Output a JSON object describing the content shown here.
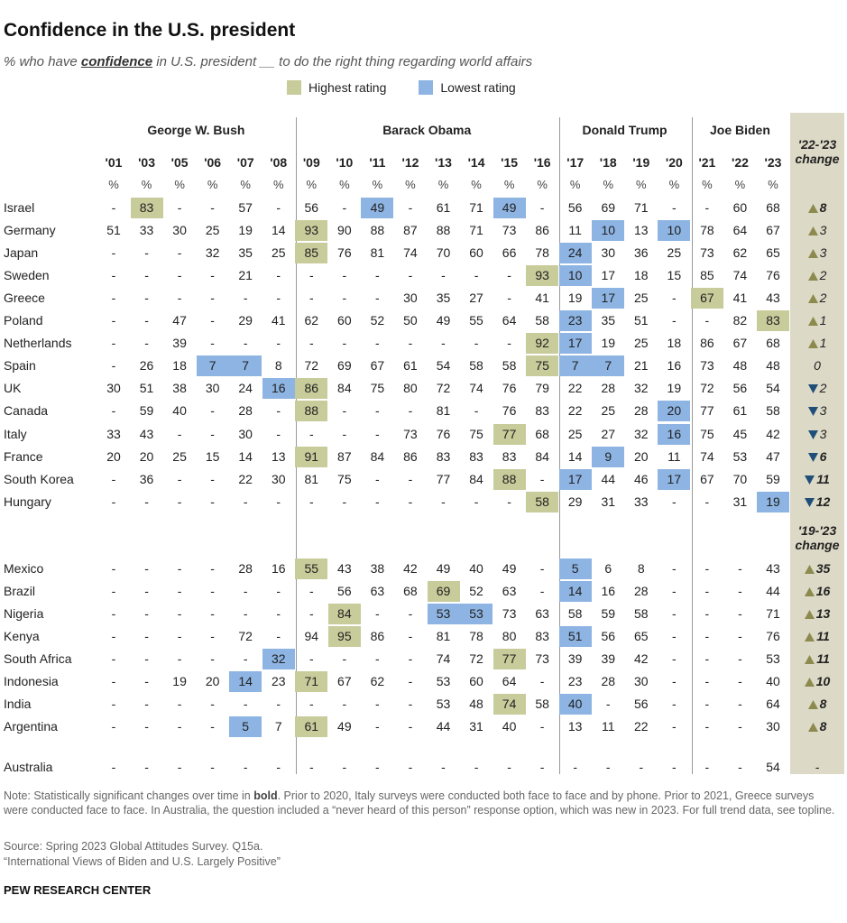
{
  "header": {
    "title": "Confidence in the U.S. president",
    "subtitle": [
      "% who have ",
      "confidence",
      " in U.S. president __ to do the right thing regarding world affairs"
    ]
  },
  "legend": [
    {
      "label": "Highest rating",
      "color": "#c8cb9a"
    },
    {
      "label": "Lowest rating",
      "color": "#8db4e2"
    }
  ],
  "table": {
    "groups": [
      {
        "name": "George W. Bush",
        "years": [
          "'01",
          "'03",
          "'05",
          "'06",
          "'07",
          "'08"
        ]
      },
      {
        "name": "Barack Obama",
        "years": [
          "'09",
          "'10",
          "'11",
          "'12",
          "'13",
          "'14",
          "'15",
          "'16"
        ]
      },
      {
        "name": "Donald Trump",
        "years": [
          "'17",
          "'18",
          "'19",
          "'20"
        ]
      },
      {
        "name": "Joe Biden",
        "years": [
          "'21",
          "'22",
          "'23"
        ]
      }
    ],
    "unit": "%",
    "sections": [
      {
        "change_label": "'22-'23 change",
        "rows": [
          {
            "country": "Israel",
            "cells": [
              "-",
              83,
              "-",
              "-",
              57,
              "-",
              56,
              "-",
              49,
              "-",
              61,
              71,
              49,
              "-",
              56,
              69,
              71,
              "-",
              "-",
              60,
              68
            ],
            "high": [
              "'03"
            ],
            "low": [
              "'11",
              "'15"
            ],
            "change": {
              "direction": "up",
              "value": "8",
              "bold": true
            }
          },
          {
            "country": "Germany",
            "cells": [
              51,
              33,
              30,
              25,
              19,
              14,
              93,
              90,
              88,
              87,
              88,
              71,
              73,
              86,
              11,
              10,
              13,
              10,
              78,
              64,
              67
            ],
            "high": [
              "'09"
            ],
            "low": [
              "'18",
              "'20"
            ],
            "change": {
              "direction": "up",
              "value": "3",
              "bold": false
            }
          },
          {
            "country": "Japan",
            "cells": [
              "-",
              "-",
              "-",
              32,
              35,
              25,
              85,
              76,
              81,
              74,
              70,
              60,
              66,
              78,
              24,
              30,
              36,
              25,
              73,
              62,
              65
            ],
            "high": [
              "'09"
            ],
            "low": [
              "'17"
            ],
            "change": {
              "direction": "up",
              "value": "3",
              "bold": false
            }
          },
          {
            "country": "Sweden",
            "cells": [
              "-",
              "-",
              "-",
              "-",
              21,
              "-",
              "-",
              "-",
              "-",
              "-",
              "-",
              "-",
              "-",
              93,
              10,
              17,
              18,
              15,
              85,
              74,
              76
            ],
            "high": [
              "'16"
            ],
            "low": [
              "'17"
            ],
            "change": {
              "direction": "up",
              "value": "2",
              "bold": false
            }
          },
          {
            "country": "Greece",
            "cells": [
              "-",
              "-",
              "-",
              "-",
              "-",
              "-",
              "-",
              "-",
              "-",
              30,
              35,
              27,
              "-",
              41,
              19,
              17,
              25,
              "-",
              67,
              41,
              43
            ],
            "high": [
              "'21"
            ],
            "low": [
              "'18"
            ],
            "change": {
              "direction": "up",
              "value": "2",
              "bold": false
            }
          },
          {
            "country": "Poland",
            "cells": [
              "-",
              "-",
              47,
              "-",
              29,
              41,
              62,
              60,
              52,
              50,
              49,
              55,
              64,
              58,
              23,
              35,
              51,
              "-",
              "-",
              82,
              83
            ],
            "high": [
              "'23"
            ],
            "low": [
              "'17"
            ],
            "change": {
              "direction": "up",
              "value": "1",
              "bold": false
            }
          },
          {
            "country": "Netherlands",
            "cells": [
              "-",
              "-",
              39,
              "-",
              "-",
              "-",
              "-",
              "-",
              "-",
              "-",
              "-",
              "-",
              "-",
              92,
              17,
              19,
              25,
              18,
              86,
              67,
              68
            ],
            "high": [
              "'16"
            ],
            "low": [
              "'17"
            ],
            "change": {
              "direction": "up",
              "value": "1",
              "bold": false
            }
          },
          {
            "country": "Spain",
            "cells": [
              "-",
              26,
              18,
              7,
              7,
              8,
              72,
              69,
              67,
              61,
              54,
              58,
              58,
              75,
              7,
              7,
              21,
              16,
              73,
              48,
              48
            ],
            "high": [
              "'16"
            ],
            "low": [
              "'06",
              "'07",
              "'17",
              "'18"
            ],
            "change": {
              "direction": null,
              "value": "0",
              "bold": false
            }
          },
          {
            "country": "UK",
            "cells": [
              30,
              51,
              38,
              30,
              24,
              16,
              86,
              84,
              75,
              80,
              72,
              74,
              76,
              79,
              22,
              28,
              32,
              19,
              72,
              56,
              54
            ],
            "high": [
              "'09"
            ],
            "low": [
              "'08"
            ],
            "change": {
              "direction": "down",
              "value": "2",
              "bold": false
            }
          },
          {
            "country": "Canada",
            "cells": [
              "-",
              59,
              40,
              "-",
              28,
              "-",
              88,
              "-",
              "-",
              "-",
              81,
              "-",
              76,
              83,
              22,
              25,
              28,
              20,
              77,
              61,
              58
            ],
            "high": [
              "'09"
            ],
            "low": [
              "'20"
            ],
            "change": {
              "direction": "down",
              "value": "3",
              "bold": false
            }
          },
          {
            "country": "Italy",
            "cells": [
              33,
              43,
              "-",
              "-",
              30,
              "-",
              "-",
              "-",
              "-",
              73,
              76,
              75,
              77,
              68,
              25,
              27,
              32,
              16,
              75,
              45,
              42
            ],
            "high": [
              "'15"
            ],
            "low": [
              "'20"
            ],
            "change": {
              "direction": "down",
              "value": "3",
              "bold": false
            }
          },
          {
            "country": "France",
            "cells": [
              20,
              20,
              25,
              15,
              14,
              13,
              91,
              87,
              84,
              86,
              83,
              83,
              83,
              84,
              14,
              9,
              20,
              11,
              74,
              53,
              47
            ],
            "high": [
              "'09"
            ],
            "low": [
              "'18"
            ],
            "change": {
              "direction": "down",
              "value": "6",
              "bold": true
            }
          },
          {
            "country": "South Korea",
            "cells": [
              "-",
              36,
              "-",
              "-",
              22,
              30,
              81,
              75,
              "-",
              "-",
              77,
              84,
              88,
              "-",
              17,
              44,
              46,
              17,
              67,
              70,
              59
            ],
            "high": [
              "'15"
            ],
            "low": [
              "'17",
              "'20"
            ],
            "change": {
              "direction": "down",
              "value": "11",
              "bold": true
            }
          },
          {
            "country": "Hungary",
            "cells": [
              "-",
              "-",
              "-",
              "-",
              "-",
              "-",
              "-",
              "-",
              "-",
              "-",
              "-",
              "-",
              "-",
              58,
              29,
              31,
              33,
              "-",
              "-",
              31,
              19
            ],
            "high": [
              "'16"
            ],
            "low": [
              "'23"
            ],
            "change": {
              "direction": "down",
              "value": "12",
              "bold": true
            }
          }
        ]
      },
      {
        "change_label": "'19-'23 change",
        "rows": [
          {
            "country": "Mexico",
            "cells": [
              "-",
              "-",
              "-",
              "-",
              28,
              16,
              55,
              43,
              38,
              42,
              49,
              40,
              49,
              "-",
              5,
              6,
              8,
              "-",
              "-",
              "-",
              43
            ],
            "high": [
              "'09"
            ],
            "low": [
              "'17"
            ],
            "change": {
              "direction": "up",
              "value": "35",
              "bold": true
            }
          },
          {
            "country": "Brazil",
            "cells": [
              "-",
              "-",
              "-",
              "-",
              "-",
              "-",
              "-",
              56,
              63,
              68,
              69,
              52,
              63,
              "-",
              14,
              16,
              28,
              "-",
              "-",
              "-",
              44
            ],
            "high": [
              "'13"
            ],
            "low": [
              "'17"
            ],
            "change": {
              "direction": "up",
              "value": "16",
              "bold": true
            }
          },
          {
            "country": "Nigeria",
            "cells": [
              "-",
              "-",
              "-",
              "-",
              "-",
              "-",
              "-",
              84,
              "-",
              "-",
              53,
              53,
              73,
              63,
              58,
              59,
              58,
              "-",
              "-",
              "-",
              71
            ],
            "high": [
              "'10"
            ],
            "low": [
              "'13",
              "'14"
            ],
            "change": {
              "direction": "up",
              "value": "13",
              "bold": true
            }
          },
          {
            "country": "Kenya",
            "cells": [
              "-",
              "-",
              "-",
              "-",
              72,
              "-",
              94,
              95,
              86,
              "-",
              81,
              78,
              80,
              83,
              51,
              56,
              65,
              "-",
              "-",
              "-",
              76
            ],
            "high": [
              "'10"
            ],
            "low": [
              "'17"
            ],
            "change": {
              "direction": "up",
              "value": "11",
              "bold": true
            }
          },
          {
            "country": "South Africa",
            "cells": [
              "-",
              "-",
              "-",
              "-",
              "-",
              32,
              "-",
              "-",
              "-",
              "-",
              74,
              72,
              77,
              73,
              39,
              39,
              42,
              "-",
              "-",
              "-",
              53
            ],
            "high": [
              "'15"
            ],
            "low": [
              "'08"
            ],
            "change": {
              "direction": "up",
              "value": "11",
              "bold": true
            }
          },
          {
            "country": "Indonesia",
            "cells": [
              "-",
              "-",
              19,
              20,
              14,
              23,
              71,
              67,
              62,
              "-",
              53,
              60,
              64,
              "-",
              23,
              28,
              30,
              "-",
              "-",
              "-",
              40
            ],
            "high": [
              "'09"
            ],
            "low": [
              "'07"
            ],
            "change": {
              "direction": "up",
              "value": "10",
              "bold": true
            }
          },
          {
            "country": "India",
            "cells": [
              "-",
              "-",
              "-",
              "-",
              "-",
              "-",
              "-",
              "-",
              "-",
              "-",
              53,
              48,
              74,
              58,
              40,
              "-",
              56,
              "-",
              "-",
              "-",
              64
            ],
            "high": [
              "'15"
            ],
            "low": [
              "'17"
            ],
            "change": {
              "direction": "up",
              "value": "8",
              "bold": true
            }
          },
          {
            "country": "Argentina",
            "cells": [
              "-",
              "-",
              "-",
              "-",
              5,
              7,
              61,
              49,
              "-",
              "-",
              44,
              31,
              40,
              "-",
              13,
              11,
              22,
              "-",
              "-",
              "-",
              30
            ],
            "high": [
              "'09"
            ],
            "low": [
              "'07"
            ],
            "change": {
              "direction": "up",
              "value": "8",
              "bold": true
            }
          }
        ]
      },
      {
        "rows": [
          {
            "country": "Australia",
            "cells": [
              "-",
              "-",
              "-",
              "-",
              "-",
              "-",
              "-",
              "-",
              "-",
              "-",
              "-",
              "-",
              "-",
              "-",
              "-",
              "-",
              "-",
              "-",
              "-",
              "-",
              54
            ],
            "high": [],
            "low": [],
            "change": {
              "direction": null,
              "value": "-",
              "bold": false
            }
          }
        ]
      }
    ]
  },
  "notes": {
    "note": [
      "Note: Statistically significant changes over time in ",
      "bold",
      ". Prior to 2020, Italy surveys were conducted both face to face and by phone. Prior to 2021, Greece surveys were conducted face to face. In Australia, the question included a “never heard of this person” response option, which was new in 2023. For full trend data, see topline."
    ],
    "source": "Source: Spring 2023 Global Attitudes Survey. Q15a.",
    "report": "“International Views of Biden and U.S. Largely Positive”",
    "footer": "PEW RESEARCH CENTER"
  }
}
